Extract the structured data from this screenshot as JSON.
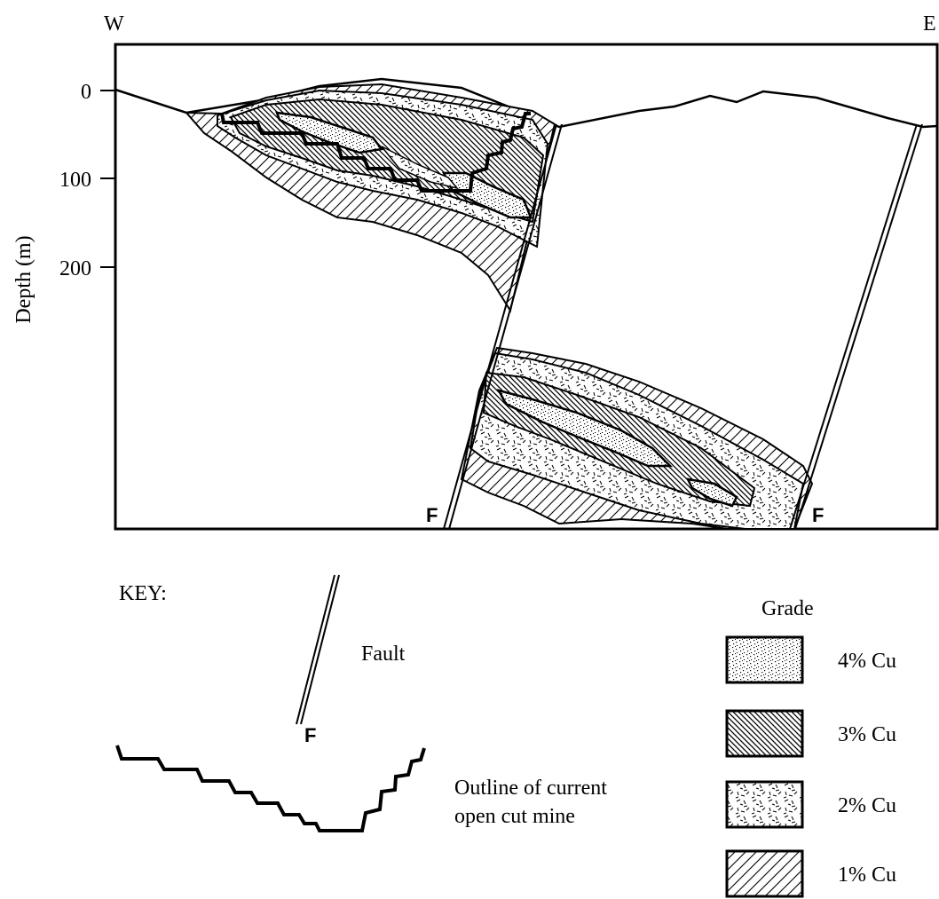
{
  "compass": {
    "west": "W",
    "east": "E"
  },
  "axis": {
    "label": "Depth (m)",
    "ticks": [
      "0",
      "100",
      "200"
    ]
  },
  "fault_marker": "F",
  "key": {
    "heading": "KEY:",
    "fault_label": "Fault",
    "fault_marker": "F",
    "mine_label_line1": "Outline of current",
    "mine_label_line2": "open cut mine"
  },
  "grade": {
    "heading": "Grade",
    "items": [
      {
        "label": "4% Cu",
        "pattern": "stipple"
      },
      {
        "label": "3% Cu",
        "pattern": "dense-hatch"
      },
      {
        "label": "2% Cu",
        "pattern": "dash"
      },
      {
        "label": "1% Cu",
        "pattern": "sparse-hatch"
      }
    ]
  },
  "colors": {
    "ink": "#000000",
    "paper": "#ffffff"
  }
}
